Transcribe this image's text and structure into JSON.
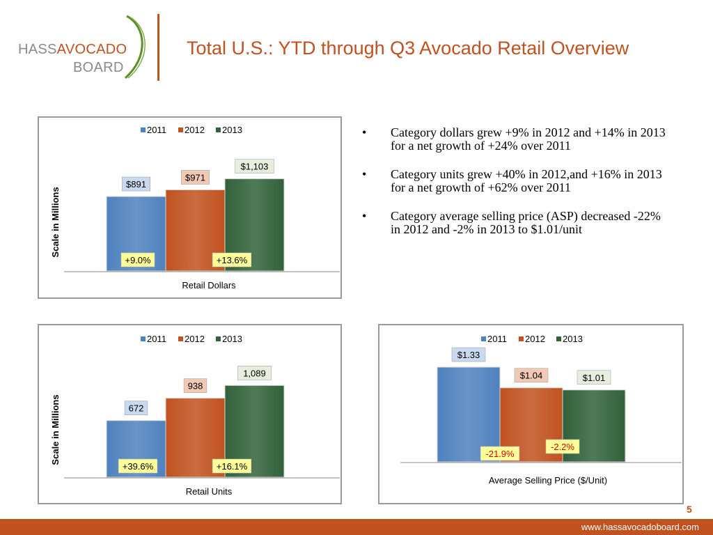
{
  "logo": {
    "word_hass": "HASS",
    "word_avocado": "AVOCADO",
    "word_board": "BOARD"
  },
  "title": "Total U.S.: YTD through Q3 Avocado Retail Overview",
  "bullets": [
    "Category dollars grew +9% in 2012 and +14% in 2013 for a net growth of +24% over 2011",
    "Category units grew +40% in 2012,and +16% in 2013 for a net growth of +62% over 2011",
    "Category average selling price (ASP) decreased -22% in 2012 and -2% in 2013 to $1.01/unit"
  ],
  "footer": {
    "url": "www.hassavocadoboard.com",
    "page": "5"
  },
  "colors": {
    "accent": "#c0521f",
    "s2011": "#4f81bd",
    "s2012": "#c0521f",
    "s2013": "#31613a"
  },
  "chart_data": [
    {
      "type": "bar",
      "xlabel": "Retail Dollars",
      "ylabel": "Scale in Millions",
      "legend": [
        "2011",
        "2012",
        "2013"
      ],
      "values": [
        891,
        971,
        1103
      ],
      "value_labels": [
        "$891",
        "$971",
        "$1,103"
      ],
      "changes": [
        "+9.0%",
        "+13.6%"
      ],
      "ylim": [
        0,
        1750
      ]
    },
    {
      "type": "bar",
      "xlabel": "Retail Units",
      "ylabel": "Scale in Millions",
      "legend": [
        "2011",
        "2012",
        "2013"
      ],
      "values": [
        672,
        938,
        1089
      ],
      "value_labels": [
        "672",
        "938",
        "1,089"
      ],
      "changes": [
        "+39.6%",
        "+16.1%"
      ],
      "ylim": [
        0,
        1720
      ]
    },
    {
      "type": "bar",
      "xlabel": "Average Selling Price ($/Unit)",
      "ylabel": "",
      "legend": [
        "2011",
        "2012",
        "2013"
      ],
      "values": [
        1.33,
        1.04,
        1.01
      ],
      "value_labels": [
        "$1.33",
        "$1.04",
        "$1.01"
      ],
      "changes": [
        "-21.9%",
        "-2.2%"
      ],
      "ylim": [
        0,
        1.8
      ]
    }
  ]
}
